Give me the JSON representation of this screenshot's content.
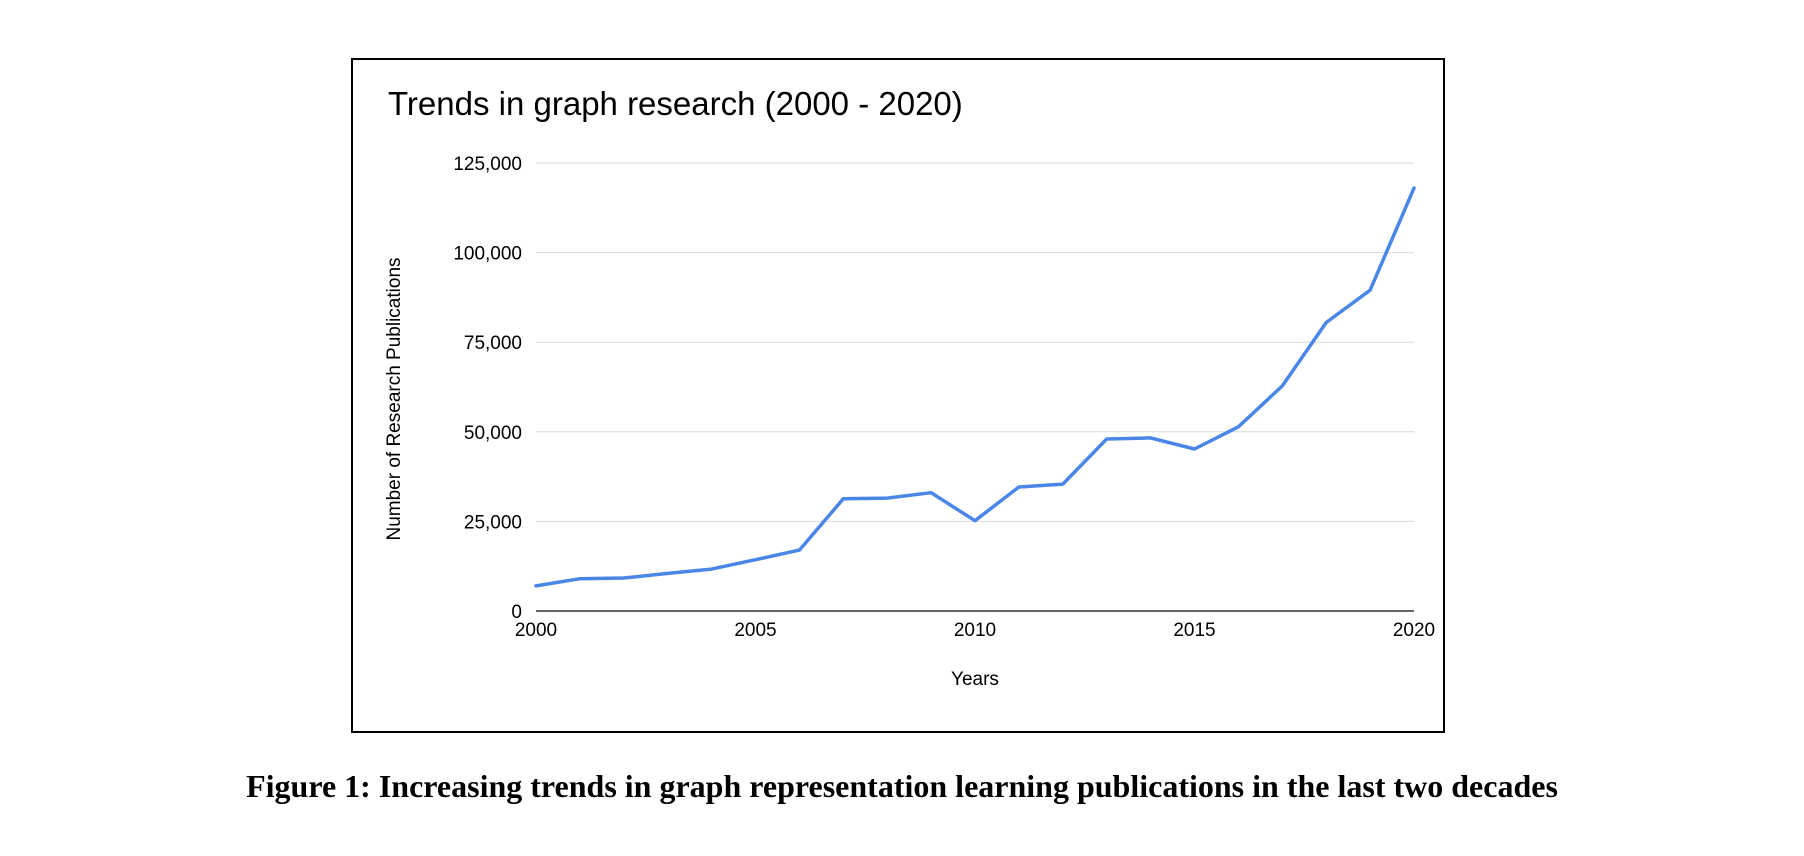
{
  "caption": "Figure 1: Increasing trends in graph representation learning publications in the last two decades",
  "chart_data": {
    "type": "line",
    "title": "Trends in graph research (2000 - 2020)",
    "xlabel": "Years",
    "ylabel": "Number of Research Publications",
    "xlim": [
      2000,
      2020
    ],
    "ylim": [
      0,
      125000
    ],
    "x_ticks": [
      2000,
      2005,
      2010,
      2015,
      2020
    ],
    "x_tick_labels": [
      "2000",
      "2005",
      "2010",
      "2015",
      "2020"
    ],
    "y_ticks": [
      0,
      25000,
      50000,
      75000,
      100000,
      125000
    ],
    "y_tick_labels": [
      "0",
      "25,000",
      "50,000",
      "75,000",
      "100,000",
      "125,000"
    ],
    "grid": true,
    "legend": "none",
    "line_color": "#4a86e8",
    "series": [
      {
        "x": [
          2000,
          2001,
          2002,
          2003,
          2004,
          2005,
          2006,
          2007,
          2008,
          2009,
          2010,
          2011,
          2012,
          2013,
          2014,
          2015,
          2016,
          2017,
          2018,
          2019,
          2020
        ],
        "values": [
          7000,
          9000,
          9200,
          10500,
          11700,
          14300,
          17000,
          31300,
          31500,
          33000,
          25200,
          34600,
          35400,
          48000,
          48300,
          45200,
          51400,
          62800,
          80500,
          89500,
          118000
        ]
      }
    ]
  }
}
